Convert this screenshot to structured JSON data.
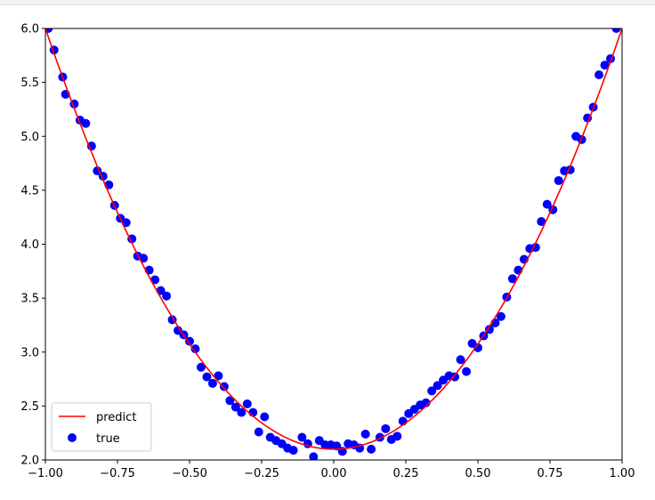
{
  "chart_data": {
    "type": "scatter",
    "title": "",
    "xlabel": "",
    "ylabel": "",
    "xlim": [
      -1.0,
      1.0
    ],
    "ylim": [
      2.0,
      6.0
    ],
    "x_ticks": [
      -1.0,
      -0.75,
      -0.5,
      -0.25,
      0.0,
      0.25,
      0.5,
      0.75,
      1.0
    ],
    "x_tick_labels": [
      "−1.00",
      "−0.75",
      "−0.50",
      "−0.25",
      "0.00",
      "0.25",
      "0.50",
      "0.75",
      "1.00"
    ],
    "y_ticks": [
      2.0,
      2.5,
      3.0,
      3.5,
      4.0,
      4.5,
      5.0,
      5.5,
      6.0
    ],
    "y_tick_labels": [
      "2.0",
      "2.5",
      "3.0",
      "3.5",
      "4.0",
      "4.5",
      "5.0",
      "5.5",
      "6.0"
    ],
    "grid": false,
    "legend_position": "lower-left",
    "series": [
      {
        "name": "predict",
        "kind": "line",
        "color": "#ff0000",
        "curve": {
          "a": 3.9,
          "b": 0.0,
          "c": 2.1
        },
        "x_range": [
          -1.0,
          1.0
        ]
      },
      {
        "name": "true",
        "kind": "scatter",
        "color": "#0000ff",
        "points": [
          [
            -0.99,
            6.0
          ],
          [
            -0.97,
            5.8
          ],
          [
            -0.94,
            5.55
          ],
          [
            -0.93,
            5.39
          ],
          [
            -0.9,
            5.3
          ],
          [
            -0.88,
            5.15
          ],
          [
            -0.86,
            5.12
          ],
          [
            -0.84,
            4.91
          ],
          [
            -0.82,
            4.68
          ],
          [
            -0.8,
            4.63
          ],
          [
            -0.78,
            4.55
          ],
          [
            -0.76,
            4.36
          ],
          [
            -0.74,
            4.24
          ],
          [
            -0.72,
            4.2
          ],
          [
            -0.7,
            4.05
          ],
          [
            -0.68,
            3.89
          ],
          [
            -0.66,
            3.87
          ],
          [
            -0.64,
            3.76
          ],
          [
            -0.62,
            3.67
          ],
          [
            -0.6,
            3.57
          ],
          [
            -0.58,
            3.52
          ],
          [
            -0.56,
            3.3
          ],
          [
            -0.54,
            3.2
          ],
          [
            -0.52,
            3.16
          ],
          [
            -0.5,
            3.1
          ],
          [
            -0.48,
            3.03
          ],
          [
            -0.46,
            2.86
          ],
          [
            -0.44,
            2.77
          ],
          [
            -0.42,
            2.71
          ],
          [
            -0.4,
            2.78
          ],
          [
            -0.38,
            2.68
          ],
          [
            -0.36,
            2.55
          ],
          [
            -0.34,
            2.49
          ],
          [
            -0.32,
            2.44
          ],
          [
            -0.3,
            2.52
          ],
          [
            -0.28,
            2.44
          ],
          [
            -0.26,
            2.26
          ],
          [
            -0.24,
            2.4
          ],
          [
            -0.22,
            2.21
          ],
          [
            -0.2,
            2.18
          ],
          [
            -0.18,
            2.15
          ],
          [
            -0.16,
            2.11
          ],
          [
            -0.14,
            2.09
          ],
          [
            -0.11,
            2.21
          ],
          [
            -0.09,
            2.15
          ],
          [
            -0.07,
            2.03
          ],
          [
            -0.05,
            2.18
          ],
          [
            -0.03,
            2.14
          ],
          [
            -0.01,
            2.14
          ],
          [
            0.01,
            2.13
          ],
          [
            0.03,
            2.08
          ],
          [
            0.05,
            2.15
          ],
          [
            0.07,
            2.14
          ],
          [
            0.09,
            2.11
          ],
          [
            0.11,
            2.24
          ],
          [
            0.13,
            2.1
          ],
          [
            0.16,
            2.21
          ],
          [
            0.18,
            2.29
          ],
          [
            0.2,
            2.19
          ],
          [
            0.22,
            2.22
          ],
          [
            0.24,
            2.36
          ],
          [
            0.26,
            2.43
          ],
          [
            0.28,
            2.47
          ],
          [
            0.3,
            2.51
          ],
          [
            0.32,
            2.53
          ],
          [
            0.34,
            2.64
          ],
          [
            0.36,
            2.69
          ],
          [
            0.38,
            2.74
          ],
          [
            0.4,
            2.78
          ],
          [
            0.42,
            2.77
          ],
          [
            0.44,
            2.93
          ],
          [
            0.46,
            2.82
          ],
          [
            0.48,
            3.08
          ],
          [
            0.5,
            3.04
          ],
          [
            0.52,
            3.15
          ],
          [
            0.54,
            3.21
          ],
          [
            0.56,
            3.27
          ],
          [
            0.58,
            3.33
          ],
          [
            0.6,
            3.51
          ],
          [
            0.62,
            3.68
          ],
          [
            0.64,
            3.76
          ],
          [
            0.66,
            3.86
          ],
          [
            0.68,
            3.96
          ],
          [
            0.7,
            3.97
          ],
          [
            0.72,
            4.21
          ],
          [
            0.74,
            4.37
          ],
          [
            0.76,
            4.32
          ],
          [
            0.78,
            4.59
          ],
          [
            0.8,
            4.68
          ],
          [
            0.82,
            4.69
          ],
          [
            0.84,
            5.0
          ],
          [
            0.86,
            4.97
          ],
          [
            0.88,
            5.17
          ],
          [
            0.9,
            5.27
          ],
          [
            0.92,
            5.57
          ],
          [
            0.94,
            5.66
          ],
          [
            0.96,
            5.72
          ],
          [
            0.98,
            6.0
          ]
        ]
      }
    ]
  },
  "legend": {
    "items": [
      {
        "label": "predict"
      },
      {
        "label": "true"
      }
    ]
  }
}
